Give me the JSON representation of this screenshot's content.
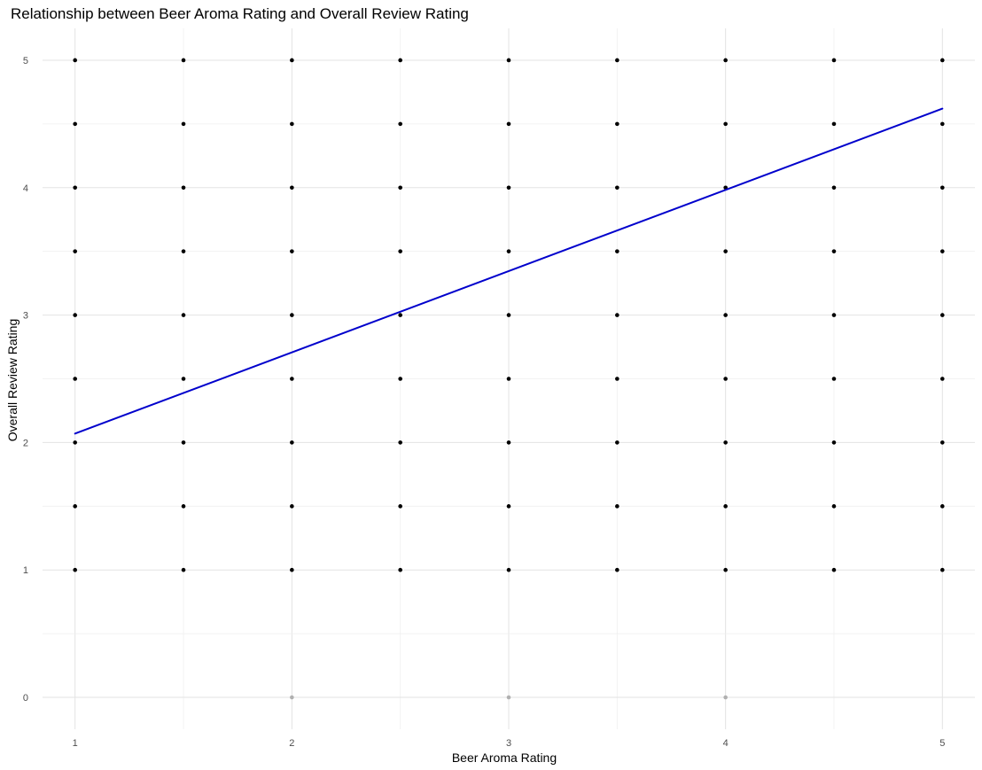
{
  "chart_data": {
    "type": "scatter",
    "title": "Relationship between Beer Aroma Rating and Overall Review Rating",
    "xlabel": "Beer Aroma Rating",
    "ylabel": "Overall Review Rating",
    "xlim": [
      0.85,
      5.15
    ],
    "ylim": [
      -0.25,
      5.25
    ],
    "x_ticks": [
      1,
      2,
      3,
      4,
      5
    ],
    "x_tick_labels": [
      "1",
      "2",
      "3",
      "4",
      "5"
    ],
    "y_ticks": [
      0,
      1,
      2,
      3,
      4,
      5
    ],
    "y_tick_labels": [
      "0",
      "1",
      "2",
      "3",
      "4",
      "5"
    ],
    "grid": true,
    "point_color": "#000000",
    "faded_point_color": "#b0b0b0",
    "points": {
      "x_values": [
        1,
        1.5,
        2,
        2.5,
        3,
        3.5,
        4,
        4.5,
        5
      ],
      "y_values": [
        1,
        1.5,
        2,
        2.5,
        3,
        3.5,
        4,
        4.5,
        5
      ]
    },
    "faded_points": [
      {
        "x": 2,
        "y": 0
      },
      {
        "x": 3,
        "y": 0
      },
      {
        "x": 4,
        "y": 0
      }
    ],
    "trend_line": {
      "color": "#0000cc",
      "x": [
        1,
        5
      ],
      "y": [
        2.07,
        4.62
      ]
    }
  }
}
